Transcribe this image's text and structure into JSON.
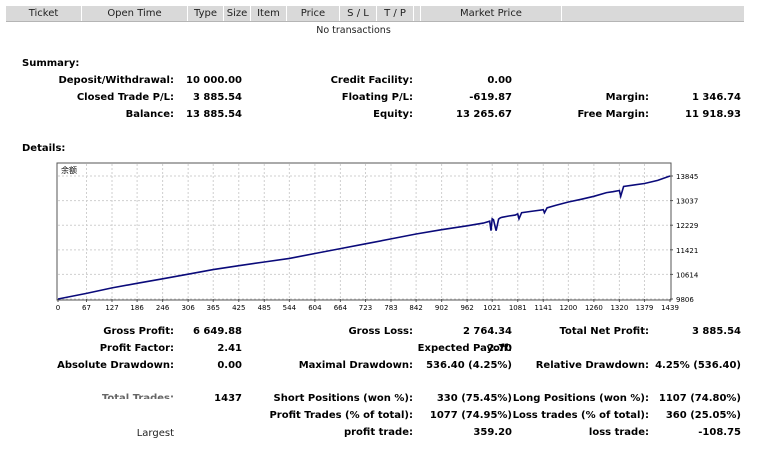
{
  "header": {
    "columns": [
      "Ticket",
      "Open Time",
      "Type",
      "Size",
      "Item",
      "Price",
      "S / L",
      "T / P",
      "",
      "Market Price",
      ""
    ],
    "empty_text": "No transactions"
  },
  "summary": {
    "title": "Summary:",
    "deposit_label": "Deposit/Withdrawal:",
    "deposit_value": "10 000.00",
    "credit_label": "Credit Facility:",
    "credit_value": "0.00",
    "closed_pl_label": "Closed Trade P/L:",
    "closed_pl_value": "3 885.54",
    "floating_pl_label": "Floating P/L:",
    "floating_pl_value": "-619.87",
    "margin_label": "Margin:",
    "margin_value": "1 346.74",
    "balance_label": "Balance:",
    "balance_value": "13 885.54",
    "equity_label": "Equity:",
    "equity_value": "13 265.67",
    "free_margin_label": "Free Margin:",
    "free_margin_value": "11 918.93"
  },
  "details": {
    "title": "Details:",
    "chart_corner_label": "余额",
    "gross_profit_label": "Gross Profit:",
    "gross_profit_value": "6 649.88",
    "gross_loss_label": "Gross Loss:",
    "gross_loss_value": "2 764.34",
    "total_net_profit_label": "Total Net Profit:",
    "total_net_profit_value": "3 885.54",
    "profit_factor_label": "Profit Factor:",
    "profit_factor_value": "2.41",
    "expected_payoff_label": "Expected Payoff:",
    "expected_payoff_value": "2.70",
    "abs_drawdown_label": "Absolute Drawdown:",
    "abs_drawdown_value": "0.00",
    "max_drawdown_label": "Maximal Drawdown:",
    "max_drawdown_value": "536.40 (4.25%)",
    "rel_drawdown_label": "Relative Drawdown:",
    "rel_drawdown_value": "4.25% (536.40)",
    "total_trades_label": "Total Trades:",
    "total_trades_value": "1437",
    "short_label": "Short Positions (won %):",
    "short_value": "330 (75.45%)",
    "long_label": "Long Positions (won %):",
    "long_value": "1107 (74.80%)",
    "profit_trades_label": "Profit Trades (% of total):",
    "profit_trades_value": "1077 (74.95%)",
    "loss_trades_label": "Loss trades (% of total):",
    "loss_trades_value": "360 (25.05%)",
    "largest_label": "Largest",
    "largest_profit_label": "profit trade:",
    "largest_profit_value": "359.20",
    "largest_loss_label": "loss trade:",
    "largest_loss_value": "-108.75"
  },
  "chart_data": {
    "type": "line",
    "title": "余额",
    "xlabel": "",
    "ylabel": "",
    "x_ticks": [
      0,
      67,
      127,
      186,
      246,
      306,
      365,
      425,
      485,
      544,
      604,
      664,
      723,
      783,
      842,
      902,
      962,
      1021,
      1081,
      1141,
      1200,
      1260,
      1320,
      1379,
      1439
    ],
    "y_ticks": [
      13845,
      13037,
      12229,
      11421,
      10614,
      9806
    ],
    "xlim": [
      0,
      1439
    ],
    "ylim": [
      9806,
      13845
    ],
    "series": [
      {
        "name": "Balance",
        "color": "#0a0a7a",
        "x": [
          0,
          67,
          127,
          186,
          246,
          306,
          365,
          425,
          485,
          544,
          604,
          664,
          723,
          783,
          842,
          902,
          962,
          1000,
          1015,
          1018,
          1021,
          1024,
          1030,
          1036,
          1040,
          1044,
          1060,
          1075,
          1081,
          1084,
          1090,
          1110,
          1141,
          1144,
          1150,
          1170,
          1200,
          1230,
          1260,
          1290,
          1305,
          1320,
          1323,
          1330,
          1379,
          1410,
          1439
        ],
        "y": [
          9806,
          9990,
          10170,
          10320,
          10470,
          10620,
          10770,
          10900,
          11020,
          11140,
          11300,
          11460,
          11620,
          11780,
          11940,
          12080,
          12210,
          12300,
          12360,
          12050,
          12440,
          12410,
          12050,
          12430,
          12470,
          12490,
          12530,
          12560,
          12600,
          12440,
          12640,
          12680,
          12740,
          12640,
          12800,
          12880,
          12990,
          13080,
          13180,
          13300,
          13330,
          13370,
          13180,
          13500,
          13600,
          13700,
          13845
        ]
      }
    ]
  }
}
